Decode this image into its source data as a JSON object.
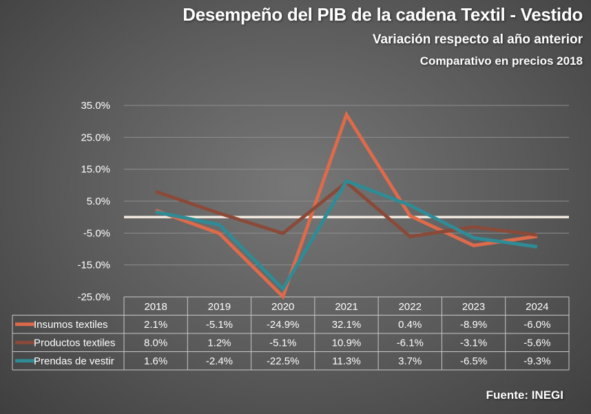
{
  "chart_data": {
    "type": "line",
    "title": "Desempeño del PIB de la cadena Textil - Vestido",
    "subtitle": "Variación respecto al año anterior",
    "subtitle2": "Comparativo en precios 2018",
    "source": "Fuente: INEGI",
    "categories": [
      "2018",
      "2019",
      "2020",
      "2021",
      "2022",
      "2023",
      "2024"
    ],
    "ylim": [
      -25,
      35
    ],
    "yticks": [
      35,
      25,
      15,
      5,
      -5,
      -15,
      -25
    ],
    "ytick_labels": [
      "35.0%",
      "25.0%",
      "15.0%",
      "5.0%",
      "-5.0%",
      "-15.0%",
      "-25.0%"
    ],
    "reference_line": 0,
    "grid": true,
    "series": [
      {
        "name": "Insumos textiles",
        "color": "#dd6a4a",
        "values": [
          2.1,
          -5.1,
          -24.9,
          32.1,
          0.4,
          -8.9,
          -6.0
        ],
        "labels": [
          "2.1%",
          "-5.1%",
          "-24.9%",
          "32.1%",
          "0.4%",
          "-8.9%",
          "-6.0%"
        ]
      },
      {
        "name": "Productos textiles",
        "color": "#8a4a3a",
        "values": [
          8.0,
          1.2,
          -5.1,
          10.9,
          -6.1,
          -3.1,
          -5.6
        ],
        "labels": [
          "8.0%",
          "1.2%",
          "-5.1%",
          "10.9%",
          "-6.1%",
          "-3.1%",
          "-5.6%"
        ]
      },
      {
        "name": "Prendas de vestir",
        "color": "#2f8b95",
        "values": [
          1.6,
          -2.4,
          -22.5,
          11.3,
          3.7,
          -6.5,
          -9.3
        ],
        "labels": [
          "1.6%",
          "-2.4%",
          "-22.5%",
          "11.3%",
          "3.7%",
          "-6.5%",
          "-9.3%"
        ]
      }
    ]
  }
}
